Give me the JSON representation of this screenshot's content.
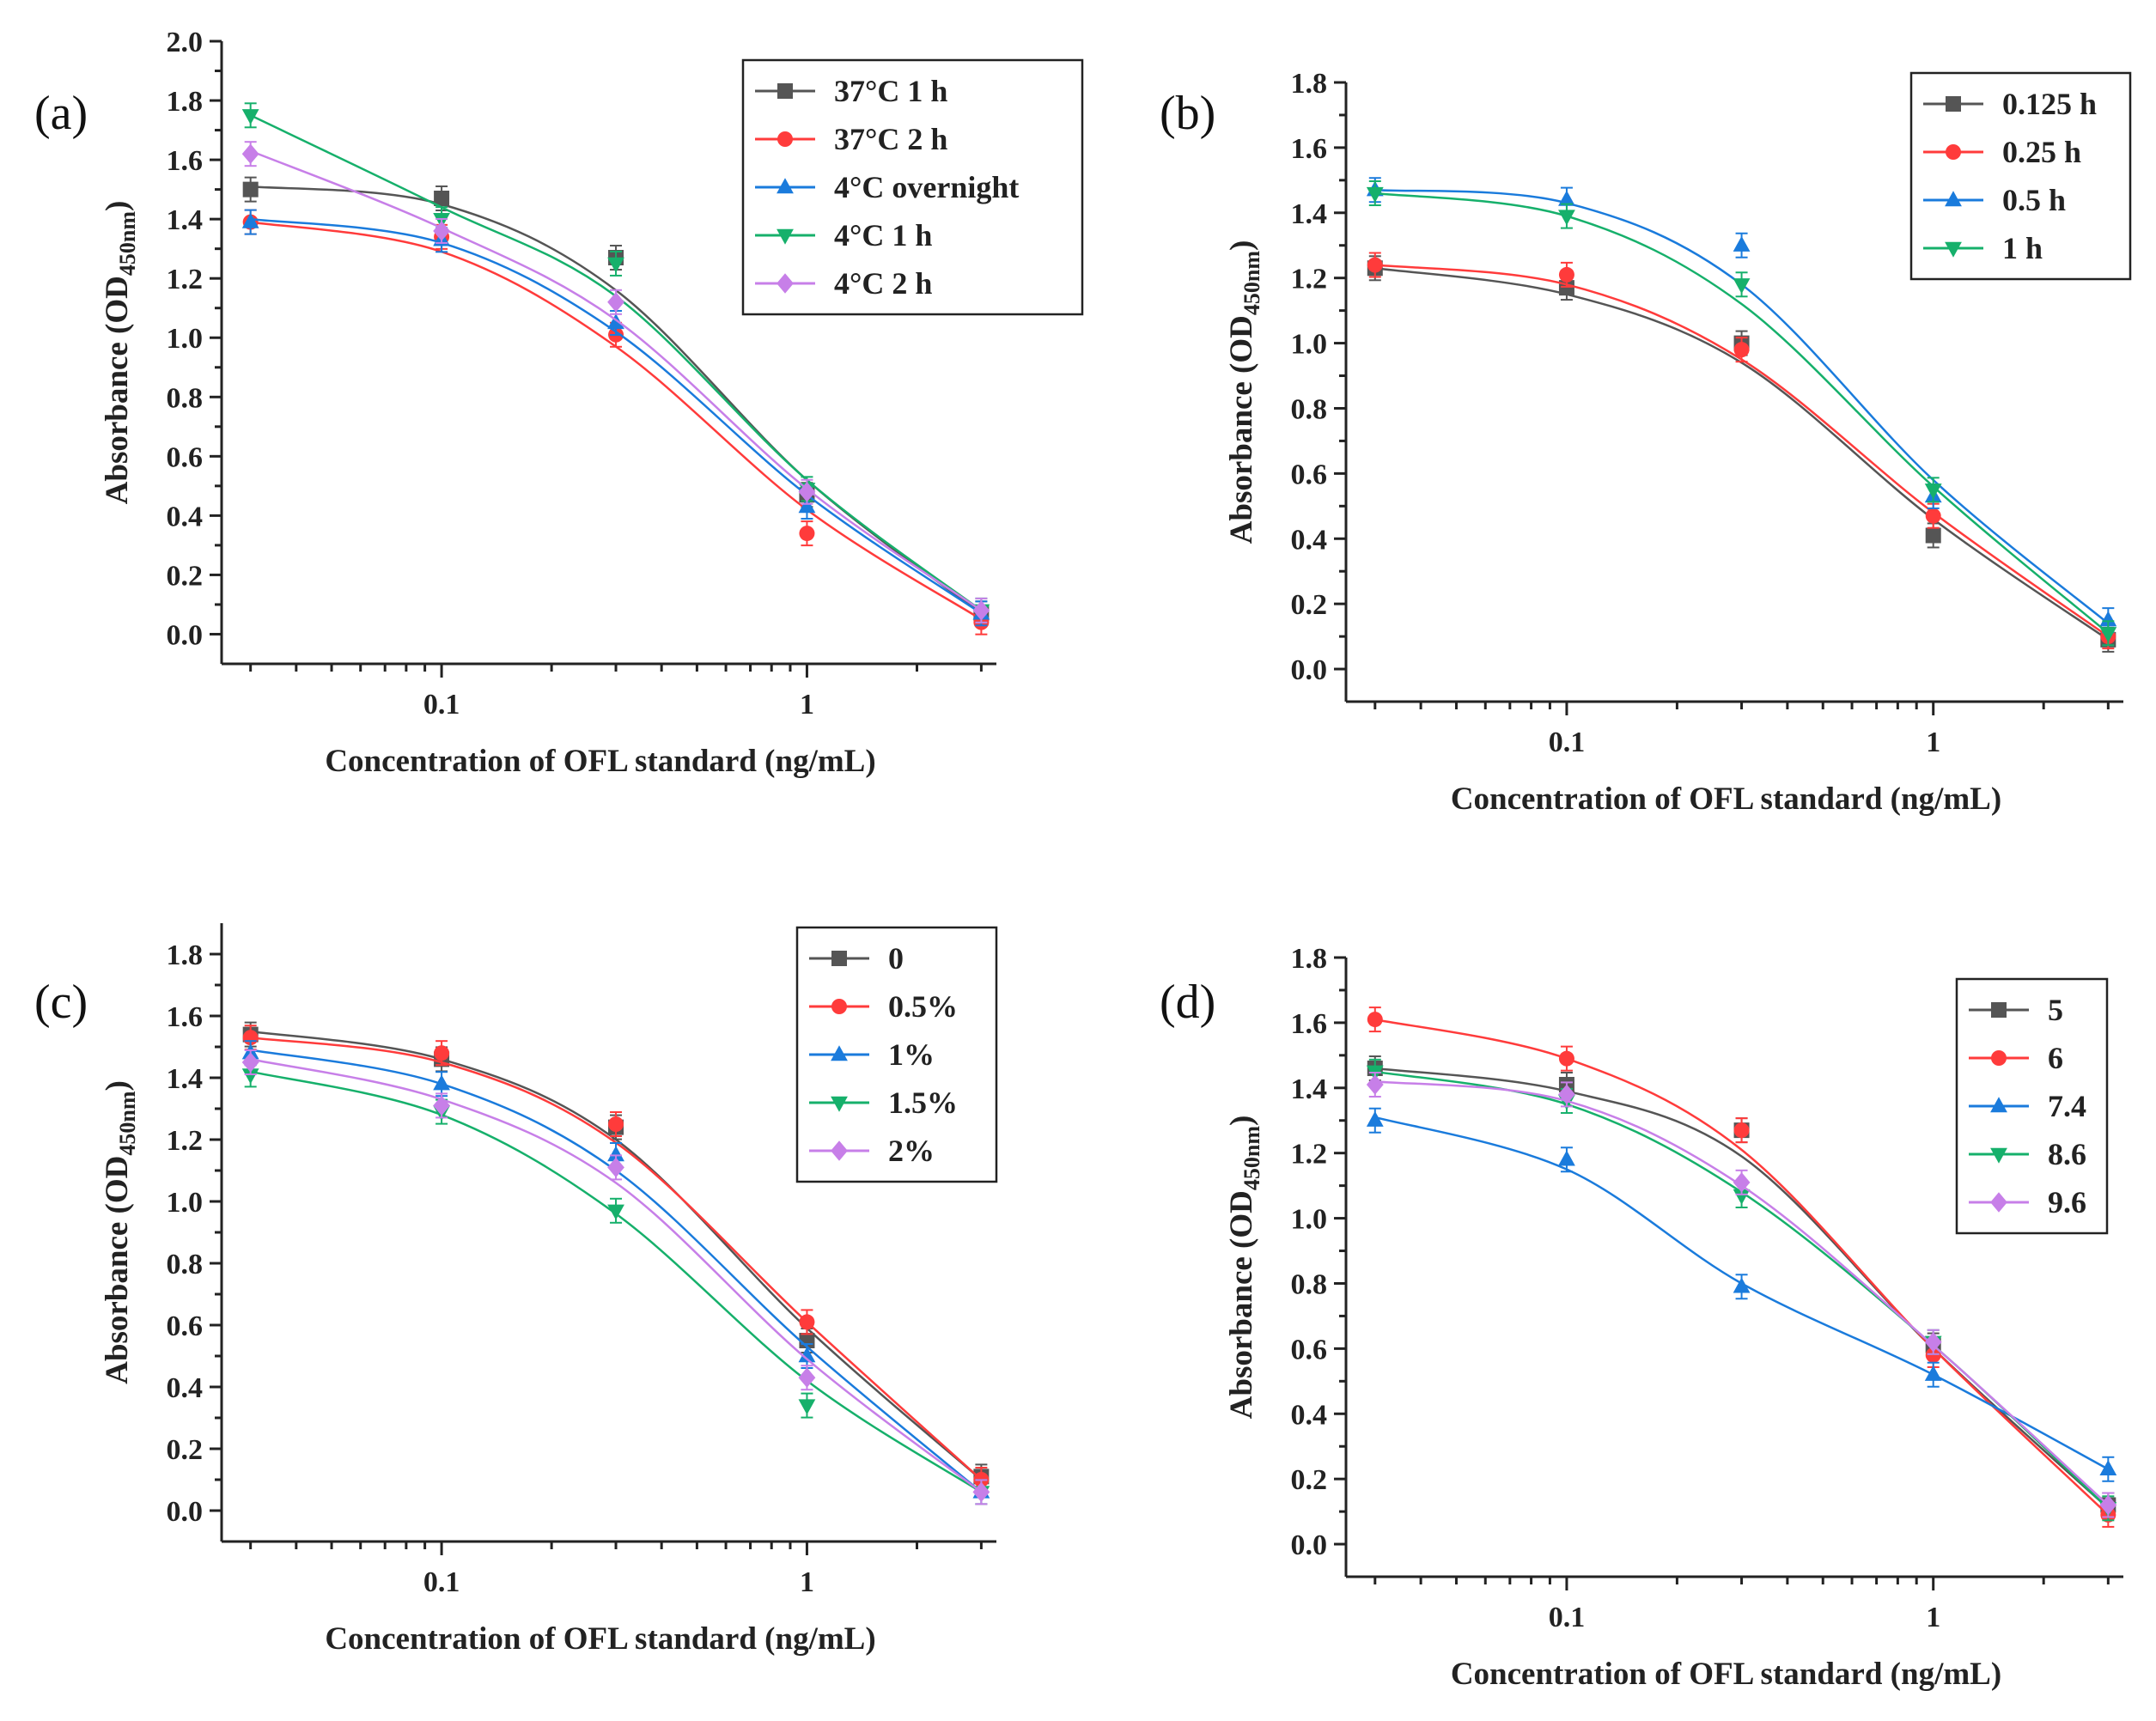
{
  "chart_data": [
    {
      "type": "line",
      "panel_label": "(a)",
      "xlabel": "Concentration of OFL standard (ng/mL)",
      "ylabel_main": "Absorbance (OD",
      "ylabel_sub": "450nm",
      "ylabel_close": ")",
      "xscale": "log",
      "xlim": [
        0.025,
        3.3
      ],
      "ylim": [
        -0.1,
        2.0
      ],
      "yticks": [
        0.0,
        0.2,
        0.4,
        0.6,
        0.8,
        1.0,
        1.2,
        1.4,
        1.6,
        1.8,
        2.0
      ],
      "ytick_labels": [
        "0.0",
        "0.2",
        "0.4",
        "0.6",
        "0.8",
        "1.0",
        "1.2",
        "1.4",
        "1.6",
        "1.8",
        "2.0"
      ],
      "xticks": [
        0.1,
        1
      ],
      "xtick_labels": [
        "0.1",
        "1"
      ],
      "x": [
        0.03,
        0.1,
        0.3,
        1,
        3
      ],
      "legend_position": "top-right",
      "series": [
        {
          "name": "37°C 1 h",
          "color": "#555555",
          "marker": "square",
          "values": [
            1.5,
            1.47,
            1.27,
            0.47,
            0.07
          ],
          "fit": [
            1.51,
            1.45,
            1.16,
            0.52,
            0.07
          ]
        },
        {
          "name": "37°C 2 h",
          "color": "#ff3b3b",
          "marker": "circle",
          "values": [
            1.39,
            1.34,
            1.01,
            0.34,
            0.04
          ],
          "fit": [
            1.39,
            1.29,
            0.97,
            0.42,
            0.05
          ]
        },
        {
          "name": "4°C overnight",
          "color": "#1a7bdc",
          "marker": "triangle-up",
          "values": [
            1.39,
            1.33,
            1.05,
            0.43,
            0.07
          ],
          "fit": [
            1.4,
            1.32,
            1.02,
            0.47,
            0.07
          ]
        },
        {
          "name": "4°C 1 h",
          "color": "#16b06b",
          "marker": "triangle-down",
          "values": [
            1.75,
            1.4,
            1.25,
            0.49,
            0.08
          ],
          "fit": [
            1.75,
            1.44,
            1.14,
            0.52,
            0.08
          ]
        },
        {
          "name": "4°C 2 h",
          "color": "#c77fe8",
          "marker": "diamond",
          "values": [
            1.62,
            1.36,
            1.12,
            0.48,
            0.08
          ],
          "fit": [
            1.63,
            1.37,
            1.06,
            0.49,
            0.08
          ]
        }
      ]
    },
    {
      "type": "line",
      "panel_label": "(b)",
      "xlabel": "Concentration of OFL standard (ng/mL)",
      "ylabel_main": "Absorbance (OD",
      "ylabel_sub": "450nm",
      "ylabel_close": ")",
      "xscale": "log",
      "xlim": [
        0.025,
        3.3
      ],
      "ylim": [
        -0.1,
        1.8
      ],
      "yticks": [
        0.0,
        0.2,
        0.4,
        0.6,
        0.8,
        1.0,
        1.2,
        1.4,
        1.6,
        1.8
      ],
      "ytick_labels": [
        "0.0",
        "0.2",
        "0.4",
        "0.6",
        "0.8",
        "1.0",
        "1.2",
        "1.4",
        "1.6",
        "1.8"
      ],
      "xticks": [
        0.1,
        1
      ],
      "xtick_labels": [
        "0.1",
        "1"
      ],
      "x": [
        0.03,
        0.1,
        0.3,
        1,
        3
      ],
      "legend_position": "top-right",
      "series": [
        {
          "name": "0.125 h",
          "color": "#555555",
          "marker": "square",
          "values": [
            1.23,
            1.17,
            1.0,
            0.41,
            0.09
          ],
          "fit": [
            1.23,
            1.15,
            0.94,
            0.46,
            0.09
          ]
        },
        {
          "name": "0.25 h",
          "color": "#ff3b3b",
          "marker": "circle",
          "values": [
            1.24,
            1.21,
            0.98,
            0.47,
            0.1
          ],
          "fit": [
            1.24,
            1.18,
            0.95,
            0.48,
            0.1
          ]
        },
        {
          "name": "0.5 h",
          "color": "#1a7bdc",
          "marker": "triangle-up",
          "values": [
            1.47,
            1.44,
            1.3,
            0.53,
            0.15
          ],
          "fit": [
            1.47,
            1.43,
            1.18,
            0.58,
            0.14
          ]
        },
        {
          "name": "1 h",
          "color": "#16b06b",
          "marker": "triangle-down",
          "values": [
            1.46,
            1.39,
            1.18,
            0.55,
            0.11
          ],
          "fit": [
            1.46,
            1.39,
            1.12,
            0.56,
            0.11
          ]
        }
      ]
    },
    {
      "type": "line",
      "panel_label": "(c)",
      "xlabel": "Concentration of OFL standard (ng/mL)",
      "ylabel_main": "Absorbance (OD",
      "ylabel_sub": "450nm",
      "ylabel_close": ")",
      "xscale": "log",
      "xlim": [
        0.025,
        3.3
      ],
      "ylim": [
        -0.1,
        1.9
      ],
      "yticks": [
        0.0,
        0.2,
        0.4,
        0.6,
        0.8,
        1.0,
        1.2,
        1.4,
        1.6,
        1.8
      ],
      "ytick_labels": [
        "0.0",
        "0.2",
        "0.4",
        "0.6",
        "0.8",
        "1.0",
        "1.2",
        "1.4",
        "1.6",
        "1.8"
      ],
      "xticks": [
        0.1,
        1
      ],
      "xtick_labels": [
        "0.1",
        "1"
      ],
      "x": [
        0.03,
        0.1,
        0.3,
        1,
        3
      ],
      "legend_position": "top-right",
      "series": [
        {
          "name": "0",
          "color": "#555555",
          "marker": "square",
          "values": [
            1.54,
            1.46,
            1.24,
            0.55,
            0.11
          ],
          "fit": [
            1.55,
            1.46,
            1.2,
            0.59,
            0.1
          ]
        },
        {
          "name": "0.5%",
          "color": "#ff3b3b",
          "marker": "circle",
          "values": [
            1.53,
            1.48,
            1.25,
            0.61,
            0.1
          ],
          "fit": [
            1.53,
            1.45,
            1.19,
            0.61,
            0.1
          ]
        },
        {
          "name": "1%",
          "color": "#1a7bdc",
          "marker": "triangle-up",
          "values": [
            1.48,
            1.38,
            1.15,
            0.5,
            0.06
          ],
          "fit": [
            1.49,
            1.38,
            1.1,
            0.53,
            0.06
          ]
        },
        {
          "name": "1.5%",
          "color": "#16b06b",
          "marker": "triangle-down",
          "values": [
            1.41,
            1.29,
            0.97,
            0.34,
            0.06
          ],
          "fit": [
            1.42,
            1.28,
            0.96,
            0.42,
            0.06
          ]
        },
        {
          "name": "2%",
          "color": "#c77fe8",
          "marker": "diamond",
          "values": [
            1.45,
            1.31,
            1.11,
            0.43,
            0.06
          ],
          "fit": [
            1.46,
            1.33,
            1.06,
            0.49,
            0.06
          ]
        }
      ]
    },
    {
      "type": "line",
      "panel_label": "(d)",
      "xlabel": "Concentration of OFL standard (ng/mL)",
      "ylabel_main": "Absorbance (OD",
      "ylabel_sub": "450nm",
      "ylabel_close": ")",
      "xscale": "log",
      "xlim": [
        0.025,
        3.3
      ],
      "ylim": [
        -0.1,
        1.8
      ],
      "yticks": [
        0.0,
        0.2,
        0.4,
        0.6,
        0.8,
        1.0,
        1.2,
        1.4,
        1.6,
        1.8
      ],
      "ytick_labels": [
        "0.0",
        "0.2",
        "0.4",
        "0.6",
        "0.8",
        "1.0",
        "1.2",
        "1.4",
        "1.6",
        "1.8"
      ],
      "xticks": [
        0.1,
        1
      ],
      "xtick_labels": [
        "0.1",
        "1"
      ],
      "x": [
        0.03,
        0.1,
        0.3,
        1,
        3
      ],
      "legend_position": "top-right",
      "series": [
        {
          "name": "5",
          "color": "#555555",
          "marker": "square",
          "values": [
            1.46,
            1.41,
            1.27,
            0.61,
            0.12
          ],
          "fit": [
            1.46,
            1.39,
            1.19,
            0.6,
            0.11
          ]
        },
        {
          "name": "6",
          "color": "#ff3b3b",
          "marker": "circle",
          "values": [
            1.61,
            1.49,
            1.27,
            0.58,
            0.09
          ],
          "fit": [
            1.61,
            1.49,
            1.21,
            0.6,
            0.09
          ]
        },
        {
          "name": "7.4",
          "color": "#1a7bdc",
          "marker": "triangle-up",
          "values": [
            1.3,
            1.18,
            0.79,
            0.52,
            0.23
          ],
          "fit": [
            1.31,
            1.15,
            0.8,
            0.52,
            0.23
          ]
        },
        {
          "name": "8.6",
          "color": "#16b06b",
          "marker": "triangle-down",
          "values": [
            1.45,
            1.36,
            1.07,
            0.62,
            0.11
          ],
          "fit": [
            1.45,
            1.35,
            1.08,
            0.61,
            0.11
          ]
        },
        {
          "name": "9.6",
          "color": "#c77fe8",
          "marker": "diamond",
          "values": [
            1.41,
            1.38,
            1.11,
            0.62,
            0.12
          ],
          "fit": [
            1.42,
            1.36,
            1.1,
            0.61,
            0.12
          ]
        }
      ]
    }
  ]
}
